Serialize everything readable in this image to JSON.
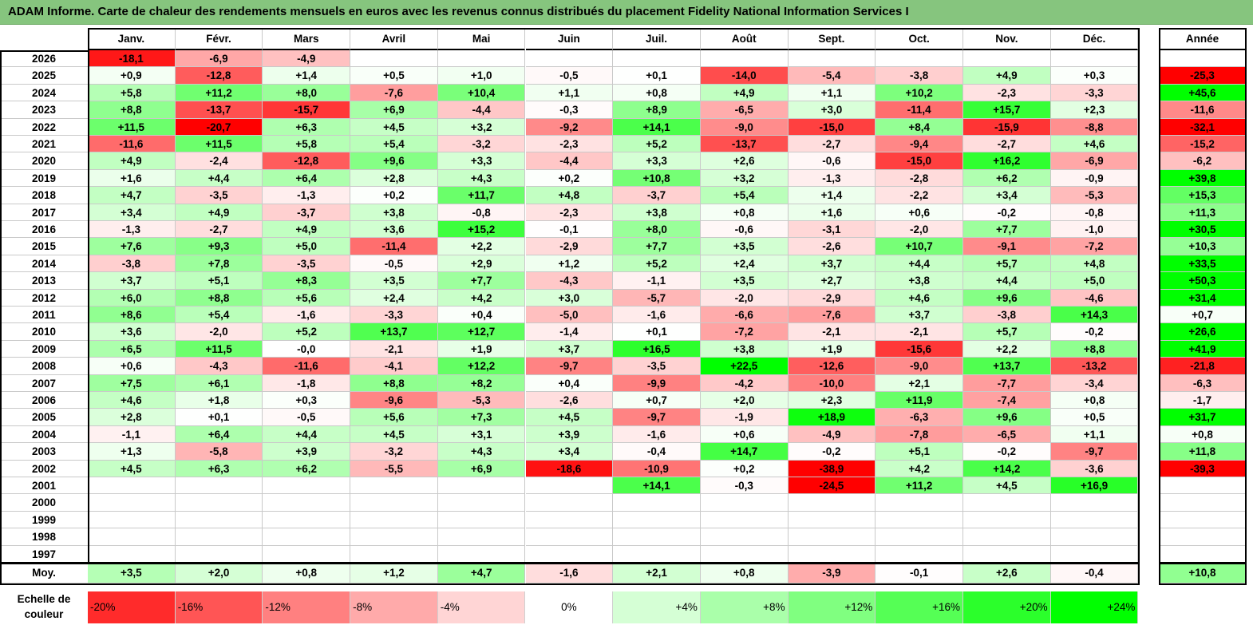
{
  "title": "ADAM Informe. Carte de chaleur des rendements mensuels en euros avec les revenus connus distribués du placement Fidelity National Information Services I",
  "chart_data": {
    "type": "heatmap",
    "title": "ADAM Informe. Carte de chaleur des rendements mensuels en euros avec les revenus connus distribués du placement Fidelity National Information Services I",
    "months": [
      "Janv.",
      "Févr.",
      "Mars",
      "Avril",
      "Mai",
      "Juin",
      "Juil.",
      "Août",
      "Sept.",
      "Oct.",
      "Nov.",
      "Déc."
    ],
    "year_header": "Année",
    "rows": [
      {
        "year": "2026",
        "values": [
          "-18,1",
          "-6,9",
          "-4,9",
          "",
          "",
          "",
          "",
          "",
          "",
          "",
          "",
          ""
        ],
        "annual": ""
      },
      {
        "year": "2025",
        "values": [
          "+0,9",
          "-12,8",
          "+1,4",
          "+0,5",
          "+1,0",
          "-0,5",
          "+0,1",
          "-14,0",
          "-5,4",
          "-3,8",
          "+4,9",
          "+0,3"
        ],
        "annual": "-25,3"
      },
      {
        "year": "2024",
        "values": [
          "+5,8",
          "+11,2",
          "+8,0",
          "-7,6",
          "+10,4",
          "+1,1",
          "+0,8",
          "+4,9",
          "+1,1",
          "+10,2",
          "-2,3",
          "-3,3"
        ],
        "annual": "+45,6"
      },
      {
        "year": "2023",
        "values": [
          "+8,8",
          "-13,7",
          "-15,7",
          "+6,9",
          "-4,4",
          "-0,3",
          "+8,9",
          "-6,5",
          "+3,0",
          "-11,4",
          "+15,7",
          "+2,3"
        ],
        "annual": "-11,6"
      },
      {
        "year": "2022",
        "values": [
          "+11,5",
          "-20,7",
          "+6,3",
          "+4,5",
          "+3,2",
          "-9,2",
          "+14,1",
          "-9,0",
          "-15,0",
          "+8,4",
          "-15,9",
          "-8,8"
        ],
        "annual": "-32,1"
      },
      {
        "year": "2021",
        "values": [
          "-11,6",
          "+11,5",
          "+5,8",
          "+5,4",
          "-3,2",
          "-2,3",
          "+5,2",
          "-13,7",
          "-2,7",
          "-9,4",
          "-2,7",
          "+4,6"
        ],
        "annual": "-15,2"
      },
      {
        "year": "2020",
        "values": [
          "+4,9",
          "-2,4",
          "-12,8",
          "+9,6",
          "+3,3",
          "-4,4",
          "+3,3",
          "+2,6",
          "-0,6",
          "-15,0",
          "+16,2",
          "-6,9"
        ],
        "annual": "-6,2"
      },
      {
        "year": "2019",
        "values": [
          "+1,6",
          "+4,4",
          "+6,4",
          "+2,8",
          "+4,3",
          "+0,2",
          "+10,8",
          "+3,2",
          "-1,3",
          "-2,8",
          "+6,2",
          "-0,9"
        ],
        "annual": "+39,8"
      },
      {
        "year": "2018",
        "values": [
          "+4,7",
          "-3,5",
          "-1,3",
          "+0,2",
          "+11,7",
          "+4,8",
          "-3,7",
          "+5,4",
          "+1,4",
          "-2,2",
          "+3,4",
          "-5,3"
        ],
        "annual": "+15,3"
      },
      {
        "year": "2017",
        "values": [
          "+3,4",
          "+4,9",
          "-3,7",
          "+3,8",
          "-0,8",
          "-2,3",
          "+3,8",
          "+0,8",
          "+1,6",
          "+0,6",
          "-0,2",
          "-0,8"
        ],
        "annual": "+11,3"
      },
      {
        "year": "2016",
        "values": [
          "-1,3",
          "-2,7",
          "+4,9",
          "+3,6",
          "+15,2",
          "-0,1",
          "+8,0",
          "-0,6",
          "-3,1",
          "-2,0",
          "+7,7",
          "-1,0"
        ],
        "annual": "+30,5"
      },
      {
        "year": "2015",
        "values": [
          "+7,6",
          "+9,3",
          "+5,0",
          "-11,4",
          "+2,2",
          "-2,9",
          "+7,7",
          "+3,5",
          "-2,6",
          "+10,7",
          "-9,1",
          "-7,2"
        ],
        "annual": "+10,3"
      },
      {
        "year": "2014",
        "values": [
          "-3,8",
          "+7,8",
          "-3,5",
          "-0,5",
          "+2,9",
          "+1,2",
          "+5,2",
          "+2,4",
          "+3,7",
          "+4,4",
          "+5,7",
          "+4,8"
        ],
        "annual": "+33,5"
      },
      {
        "year": "2013",
        "values": [
          "+3,7",
          "+5,1",
          "+8,3",
          "+3,5",
          "+7,7",
          "-4,3",
          "-1,1",
          "+3,5",
          "+2,7",
          "+3,8",
          "+4,4",
          "+5,0"
        ],
        "annual": "+50,3"
      },
      {
        "year": "2012",
        "values": [
          "+6,0",
          "+8,8",
          "+5,6",
          "+2,4",
          "+4,2",
          "+3,0",
          "-5,7",
          "-2,0",
          "-2,9",
          "+4,6",
          "+9,6",
          "-4,6"
        ],
        "annual": "+31,4"
      },
      {
        "year": "2011",
        "values": [
          "+8,6",
          "+5,4",
          "-1,6",
          "-3,3",
          "+0,4",
          "-5,0",
          "-1,6",
          "-6,6",
          "-7,6",
          "+3,7",
          "-3,8",
          "+14,3"
        ],
        "annual": "+0,7"
      },
      {
        "year": "2010",
        "values": [
          "+3,6",
          "-2,0",
          "+5,2",
          "+13,7",
          "+12,7",
          "-1,4",
          "+0,1",
          "-7,2",
          "-2,1",
          "-2,1",
          "+5,7",
          "-0,2"
        ],
        "annual": "+26,6"
      },
      {
        "year": "2009",
        "values": [
          "+6,5",
          "+11,5",
          "-0,0",
          "-2,1",
          "+1,9",
          "+3,7",
          "+16,5",
          "+3,8",
          "+1,9",
          "-15,6",
          "+2,2",
          "+8,8"
        ],
        "annual": "+41,9"
      },
      {
        "year": "2008",
        "values": [
          "+0,6",
          "-4,3",
          "-11,6",
          "-4,1",
          "+12,2",
          "-9,7",
          "-3,5",
          "+22,5",
          "-12,6",
          "-9,0",
          "+13,7",
          "-13,2"
        ],
        "annual": "-21,8"
      },
      {
        "year": "2007",
        "values": [
          "+7,5",
          "+6,1",
          "-1,8",
          "+8,8",
          "+8,2",
          "+0,4",
          "-9,9",
          "-4,2",
          "-10,0",
          "+2,1",
          "-7,7",
          "-3,4"
        ],
        "annual": "-6,3"
      },
      {
        "year": "2006",
        "values": [
          "+4,6",
          "+1,8",
          "+0,3",
          "-9,6",
          "-5,3",
          "-2,6",
          "+0,7",
          "+2,0",
          "+2,3",
          "+11,9",
          "-7,4",
          "+0,8"
        ],
        "annual": "-1,7"
      },
      {
        "year": "2005",
        "values": [
          "+2,8",
          "+0,1",
          "-0,5",
          "+5,6",
          "+7,3",
          "+4,5",
          "-9,7",
          "-1,9",
          "+18,9",
          "-6,3",
          "+9,6",
          "+0,5"
        ],
        "annual": "+31,7"
      },
      {
        "year": "2004",
        "values": [
          "-1,1",
          "+6,4",
          "+4,4",
          "+4,5",
          "+3,1",
          "+3,9",
          "-1,6",
          "+0,6",
          "-4,9",
          "-7,8",
          "-6,5",
          "+1,1"
        ],
        "annual": "+0,8"
      },
      {
        "year": "2003",
        "values": [
          "+1,3",
          "-5,8",
          "+3,9",
          "-3,2",
          "+4,3",
          "+3,4",
          "-0,4",
          "+14,7",
          "-0,2",
          "+5,1",
          "-0,2",
          "-9,7"
        ],
        "annual": "+11,8"
      },
      {
        "year": "2002",
        "values": [
          "+4,5",
          "+6,3",
          "+6,2",
          "-5,5",
          "+6,9",
          "-18,6",
          "-10,9",
          "+0,2",
          "-38,9",
          "+4,2",
          "+14,2",
          "-3,6"
        ],
        "annual": "-39,3"
      },
      {
        "year": "2001",
        "values": [
          "",
          "",
          "",
          "",
          "",
          "",
          "+14,1",
          "-0,3",
          "-24,5",
          "+11,2",
          "+4,5",
          "+16,9"
        ],
        "annual": ""
      },
      {
        "year": "2000",
        "values": [
          "",
          "",
          "",
          "",
          "",
          "",
          "",
          "",
          "",
          "",
          "",
          ""
        ],
        "annual": ""
      },
      {
        "year": "1999",
        "values": [
          "",
          "",
          "",
          "",
          "",
          "",
          "",
          "",
          "",
          "",
          "",
          ""
        ],
        "annual": ""
      },
      {
        "year": "1998",
        "values": [
          "",
          "",
          "",
          "",
          "",
          "",
          "",
          "",
          "",
          "",
          "",
          ""
        ],
        "annual": ""
      },
      {
        "year": "1997",
        "values": [
          "",
          "",
          "",
          "",
          "",
          "",
          "",
          "",
          "",
          "",
          "",
          ""
        ],
        "annual": ""
      }
    ],
    "average": {
      "label": "Moy.",
      "values": [
        "+3,5",
        "+2,0",
        "+0,8",
        "+1,2",
        "+4,7",
        "-1,6",
        "+2,1",
        "+0,8",
        "-3,9",
        "-0,1",
        "+2,6",
        "-0,4"
      ],
      "annual": "+10,8"
    },
    "scale": {
      "label": "Echelle de couleur",
      "items": [
        "-20%",
        "-16%",
        "-12%",
        "-8%",
        "-4%",
        "0%",
        "+4%",
        "+8%",
        "+12%",
        "+16%",
        "+20%",
        "+24%"
      ],
      "values": [
        -20,
        -16,
        -12,
        -8,
        -4,
        0,
        4,
        8,
        12,
        16,
        20,
        24
      ]
    },
    "colors": {
      "negative": "#ff0000",
      "positive": "#00ff00",
      "neutral": "#ffffff",
      "title_bar": "#86c57e"
    }
  }
}
